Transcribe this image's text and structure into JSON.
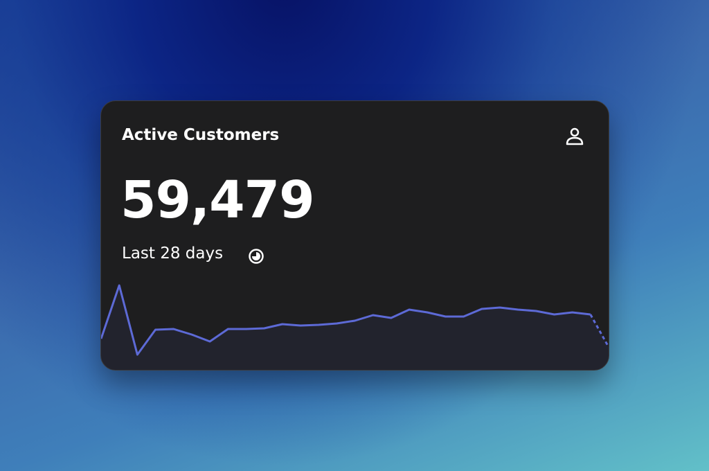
{
  "card": {
    "title": "Active Customers",
    "value": "59,479",
    "period": "Last 28 days"
  },
  "chart_data": {
    "type": "line",
    "values": [
      40,
      117,
      17,
      53,
      54,
      46,
      36,
      54,
      54,
      55,
      61,
      59,
      60,
      62,
      66,
      74,
      70,
      82,
      78,
      72,
      72,
      83,
      85,
      82,
      80,
      75,
      78,
      75,
      28
    ],
    "color": "#5d6ad6",
    "dashed_last_segment": true
  }
}
